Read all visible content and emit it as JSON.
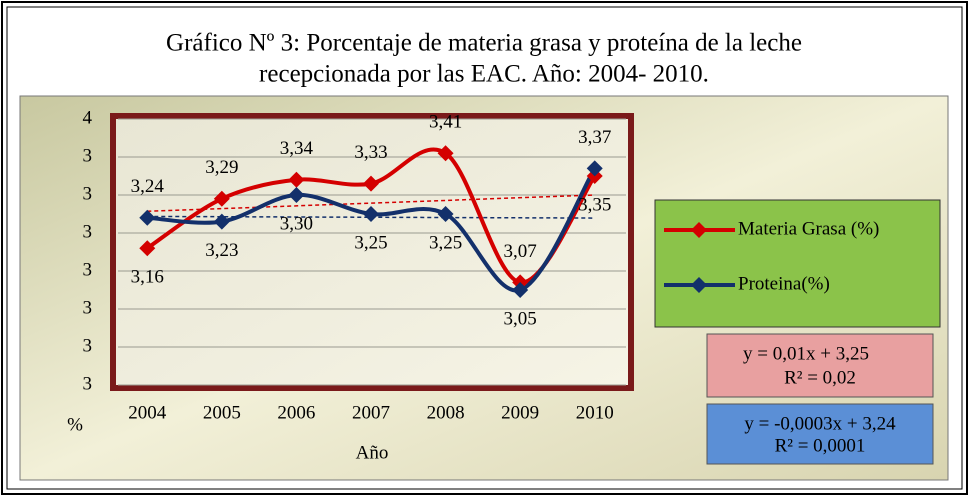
{
  "chart_data": {
    "type": "line",
    "title": "Gráfico Nº 3: Porcentaje de materia grasa y proteína de la leche",
    "subtitle": "recepcionada por las EAC. Año: 2004- 2010.",
    "x_label": "Año",
    "y_label": "%",
    "categories": [
      "2004",
      "2005",
      "2006",
      "2007",
      "2008",
      "2009",
      "2010"
    ],
    "series": [
      {
        "name": "Materia Grasa (%)",
        "color": "#d40000",
        "values": [
          3.16,
          3.29,
          3.34,
          3.33,
          3.41,
          3.07,
          3.35
        ],
        "value_labels": [
          "3,16",
          "3,29",
          "3,34",
          "3,33",
          "3,41",
          "3,07",
          "3,35"
        ],
        "trend_equation": "y = 0,01x    +   3,25",
        "trend_r2": "R² = 0,02"
      },
      {
        "name": "Proteina(%)",
        "color": "#13306b",
        "values": [
          3.24,
          3.23,
          3.3,
          3.25,
          3.25,
          3.05,
          3.37
        ],
        "value_labels": [
          "3,24",
          "3,23",
          "3,30",
          "3,25",
          "3,25",
          "3,05",
          "3,37"
        ],
        "trend_equation": "y = -0,0003x + 3,24",
        "trend_r2": "R² = 0,0001"
      }
    ],
    "ylim": [
      2.8,
      3.5
    ],
    "yticks": [
      {
        "value": 2.8,
        "label": "3"
      },
      {
        "value": 2.9,
        "label": "3"
      },
      {
        "value": 3.0,
        "label": "3"
      },
      {
        "value": 3.1,
        "label": "3"
      },
      {
        "value": 3.2,
        "label": "3"
      },
      {
        "value": 3.3,
        "label": "3"
      },
      {
        "value": 3.4,
        "label": "3"
      },
      {
        "value": 3.5,
        "label": "4"
      }
    ],
    "grid": true
  }
}
